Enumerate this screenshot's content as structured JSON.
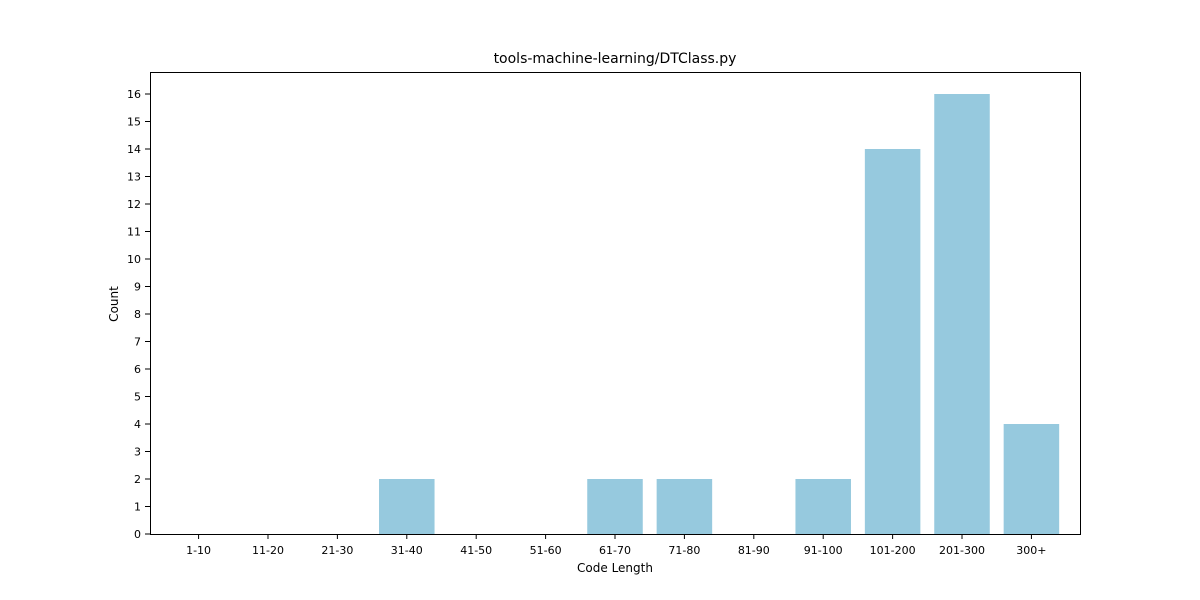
{
  "chart_data": {
    "type": "bar",
    "title": "tools-machine-learning/DTClass.py",
    "xlabel": "Code Length",
    "ylabel": "Count",
    "categories": [
      "1-10",
      "11-20",
      "21-30",
      "31-40",
      "41-50",
      "51-60",
      "61-70",
      "71-80",
      "81-90",
      "91-100",
      "101-200",
      "201-300",
      "300+"
    ],
    "values": [
      0,
      0,
      0,
      2,
      0,
      0,
      2,
      2,
      0,
      2,
      14,
      16,
      4
    ],
    "yticks": [
      0,
      1,
      2,
      3,
      4,
      5,
      6,
      7,
      8,
      9,
      10,
      11,
      12,
      13,
      14,
      15,
      16
    ],
    "ylim": [
      0,
      16.8
    ],
    "grid": false,
    "bar_color": "#96c9de"
  }
}
